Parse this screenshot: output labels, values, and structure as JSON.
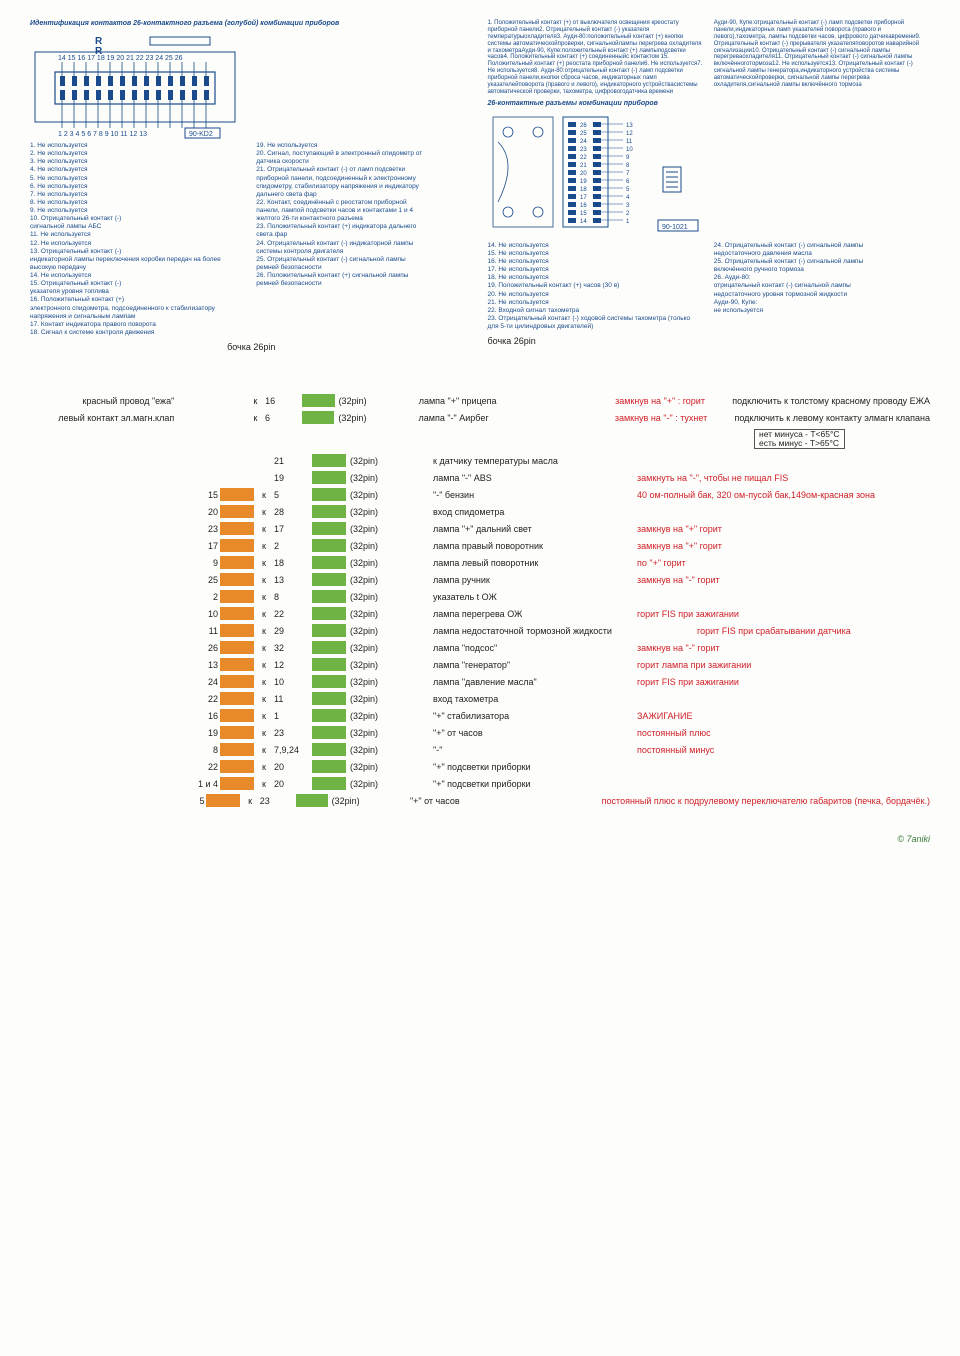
{
  "colors": {
    "blue_text": "#1a4b8c",
    "orange": "#e98a2a",
    "green": "#6eb344",
    "red": "#d02028",
    "black": "#222222",
    "bg": "#fdfdfb"
  },
  "top_left": {
    "title": "Идентификация контактов 26-контактного разъема (голубой) комбинации приборов",
    "top_numbers": "14 15 16 17 18 19 20 21 22 23 24 25 26",
    "bottom_numbers": "1  2  3  4  5  6  7  8  9 10 11 12 13",
    "code": "90-KD2",
    "list_left": [
      "1. Не используется",
      "2. Не используется",
      "3. Не используется",
      "4. Не используется",
      "5. Не используется",
      "6. Не используется",
      "7. Не используется",
      "8. Не используется",
      "9. Не используется",
      "10. Отрицательный контакт (-)",
      "сигнальной лампы АБС",
      "11. Не используется",
      "12. Не используется",
      "13. Отрицательный контакт (-)",
      "индикаторной лампы переключения коробки передач на более",
      "высокую передачу",
      "14. Не используется",
      "15. Отрицательный контакт (-)",
      "указателя уровня топлива",
      "16. Положительный контакт (+)",
      "электронного спидометра, подсоединенного к стабилизатору",
      "напряжения и сигнальным лампам",
      "17. Контакт индикатора правого поворота",
      "18. Сигнал к системе контроля движения"
    ],
    "list_right": [
      "19. Не используется",
      "20. Сигнал, поступающий в электронный спидометр от",
      "датчика скорости",
      "21. Отрицательный контакт (-) от ламп подсветки",
      "приборной панели, подсоединенный к электронному",
      "спидометру, стабилизатору напряжения и индикатору",
      "дальнего света фар",
      "22. Контакт, соединённый с реостатом приборной",
      "панели, лампой подсветки часов и контактами 1 и 4",
      "желтого 26-ти контактного разъема",
      "23. Положительный контакт (+) индикатора дальнего",
      "света фар",
      "24. Отрицательный контакт (-) индикаторной лампы",
      "системы контроля двигателя",
      "25. Отрицательный контакт (-) сигнальной лампы",
      "ремней безопасности",
      "26. Положительный контакт (+) сигнальной лампы",
      "ремней безопасности"
    ],
    "bottom": "бочка 26pin"
  },
  "top_right": {
    "tiny_top_left": [
      "1. Положительный контакт (+) от выключателя освещения к",
      "реостату приборной панели",
      "2. Отрицательный контакт (-) указателя температуры",
      "охладителя",
      "3. Ауди-80:",
      "положительный контакт (+) кнопки системы автоматической",
      "проверки, сигнальной",
      "лампы перегрева охладителя и тахометра",
      "Ауди-90, Купе:",
      "положительный контакт (+) лампы",
      "подсветки часов",
      "4. Положительный контакт (+) соединенный",
      "с контактом 1",
      "5. Положительный контакт (+) реостата приборной панели",
      "6. Не используется",
      "7. Не используется",
      "8. Ауди-80:",
      "отрицательный контакт (-) ламп подсветки приборной панели,",
      "кнопки сброса часов, индикаторных ламп указателей",
      "поворота (правого и левого), индикаторного устройства",
      "системы автоматической проверки, тахометра, цифрового",
      "датчика времени"
    ],
    "tiny_top_right": [
      "Ауди-90, Купе:",
      "отрицательный контакт (-) ламп подсветки приборной панели,",
      "индикаторных ламп указателей поворота (правого и левого),",
      "тахометра, лампы подсветки часов, цифрового датчика",
      "времени",
      "9. Отрицательный контакт (-) прерывателя указателя",
      "поворотов и",
      "аварийной сигнализации",
      "10. Отрицательный контакт (-) сигнальной лампы перегрева",
      "охладителя",
      "11. Отрицательный контакт (-) сигнальной лампы включённого",
      "тормоза",
      "12. Не используется",
      "13. Отрицательный контакт (-) сигнальной лампы генератора,",
      "индикаторного устройства системы автоматической",
      "проверки, сигнальной лампы перегрева охладителя,",
      "сигнальной лампы включённого тормоза"
    ],
    "subhead": "26-контактные разъемы комбинации приборов",
    "right_side_numbers_top": [
      "26",
      "25",
      "24",
      "23",
      "22",
      "21",
      "20",
      "19",
      "18",
      "17",
      "16",
      "15",
      "14"
    ],
    "right_side_numbers_right": [
      "13",
      "12",
      "11",
      "10",
      "9",
      "8",
      "7",
      "6",
      "5",
      "4",
      "3",
      "2",
      "1"
    ],
    "code": "90-1021",
    "list_bottom_left": [
      "14. Не используется",
      "15. Не используется",
      "16. Не используется",
      "17. Не используется",
      "18. Не используется",
      "19. Положительный контакт (+) часов (30 в)",
      "20. Не используется",
      "21. Не используется",
      "22. Входной сигнал тахометра",
      "23. Отрицательный контакт (-) ходовой системы тахометра (только",
      "для 5-ти цилиндровых двигателей)"
    ],
    "list_bottom_right": [
      "24. Отрицательный контакт (-) сигнальной лампы",
      "недостаточного давления масла",
      "25. Отрицательный контакт (-) сигнальной лампы",
      "включённого ручного тормоза",
      "26. Ауди-80:",
      "отрицательный контакт (-) сигнальной лампы",
      "недостаточного уровня тормозной жидкости",
      "Ауди-90, Купе:",
      "не используется"
    ],
    "bottom": "бочка 26pin"
  },
  "table": {
    "rows": [
      {
        "left": "красный провод \"ежа\"",
        "pin26": "",
        "lcolor": "",
        "k": "к",
        "pin32": "16",
        "rcolor": "green",
        "lbl": "(32pin)",
        "desc": "лампа \"+\" прицепа",
        "note": "замкнув на \"+\" : горит",
        "note2": "подключить к толстому красному проводу ЕЖА",
        "note2box": false
      },
      {
        "left": "левый контакт эл.магн.клап",
        "pin26": "",
        "lcolor": "",
        "k": "к",
        "pin32": "6",
        "rcolor": "green",
        "lbl": "(32pin)",
        "desc": "лампа \"-\" Аирбег",
        "note": "замкнув на \"-\" : тухнет",
        "note2": "подключить к левому контакту элмагн клапана",
        "note2box": true,
        "box_l1": "нет минуса - T<65°C",
        "box_l2": "есть минус - T>65°C"
      },
      {
        "left": "",
        "pin26": "",
        "lcolor": "",
        "k": "",
        "pin32": "21",
        "rcolor": "green",
        "lbl": "(32pin)",
        "desc": "к датчику температуры масла",
        "note": "",
        "note2": ""
      },
      {
        "left": "",
        "pin26": "",
        "lcolor": "",
        "k": "",
        "pin32": "19",
        "rcolor": "green",
        "lbl": "(32pin)",
        "desc": "лампа \"-\" ABS",
        "note": "замкнуть на \"-\", чтобы не пищал FIS",
        "note2": ""
      },
      {
        "left": "",
        "pin26": "15",
        "lcolor": "orange",
        "k": "к",
        "pin32": "5",
        "rcolor": "green",
        "lbl": "(32pin)",
        "desc": "\"-\" бензин",
        "note": "40 ом-полный бак, 320 ом-пусой бак,149ом-красная зона",
        "note2": ""
      },
      {
        "left": "",
        "pin26": "20",
        "lcolor": "orange",
        "k": "к",
        "pin32": "28",
        "rcolor": "green",
        "lbl": "(32pin)",
        "desc": "вход спидометра",
        "note": "",
        "note2": ""
      },
      {
        "left": "",
        "pin26": "23",
        "lcolor": "orange",
        "k": "к",
        "pin32": "17",
        "rcolor": "green",
        "lbl": "(32pin)",
        "desc": "лампа \"+\" дальний свет",
        "note": "замкнув на \"+\" горит",
        "note2": ""
      },
      {
        "left": "",
        "pin26": "17",
        "lcolor": "orange",
        "k": "к",
        "pin32": "2",
        "rcolor": "green",
        "lbl": "(32pin)",
        "desc": "лампа правый поворотник",
        "note": "замкнув на \"+\" горит",
        "note2": ""
      },
      {
        "left": "",
        "pin26": "9",
        "lcolor": "orange",
        "k": "к",
        "pin32": "18",
        "rcolor": "green",
        "lbl": "(32pin)",
        "desc": "лампа левый поворотник",
        "note": "по \"+\"  горит",
        "note2": ""
      },
      {
        "left": "",
        "pin26": "25",
        "lcolor": "orange",
        "k": "к",
        "pin32": "13",
        "rcolor": "green",
        "lbl": "(32pin)",
        "desc": "лампа ручник",
        "note": "замкнув на \"-\" горит",
        "note2": ""
      },
      {
        "left": "",
        "pin26": "2",
        "lcolor": "orange",
        "k": "к",
        "pin32": "8",
        "rcolor": "green",
        "lbl": "(32pin)",
        "desc": "указатель t ОЖ",
        "note": "",
        "note2": ""
      },
      {
        "left": "",
        "pin26": "10",
        "lcolor": "orange",
        "k": "к",
        "pin32": "22",
        "rcolor": "green",
        "lbl": "(32pin)",
        "desc": "лампа перегрева ОЖ",
        "note": "горит FIS при зажигании",
        "note2": ""
      },
      {
        "left": "",
        "pin26": "11",
        "lcolor": "orange",
        "k": "к",
        "pin32": "29",
        "rcolor": "green",
        "lbl": "(32pin)",
        "desc": "лампа недостаточной тормозной жидкости",
        "note": "горит FIS при срабатывании датчика",
        "note2": "",
        "wide_desc": true
      },
      {
        "left": "",
        "pin26": "26",
        "lcolor": "orange",
        "k": "к",
        "pin32": "32",
        "rcolor": "green",
        "lbl": "(32pin)",
        "desc": "лампа \"подсос\"",
        "note": "замкнув на \"-\" горит",
        "note2": ""
      },
      {
        "left": "",
        "pin26": "13",
        "lcolor": "orange",
        "k": "к",
        "pin32": "12",
        "rcolor": "green",
        "lbl": "(32pin)",
        "desc": "лампа \"генератор\"",
        "note": "горит лампа при зажигании",
        "note2": ""
      },
      {
        "left": "",
        "pin26": "24",
        "lcolor": "orange",
        "k": "к",
        "pin32": "10",
        "rcolor": "green",
        "lbl": "(32pin)",
        "desc": "лампа \"давление масла\"",
        "note": "горит FIS при зажигании",
        "note2": ""
      },
      {
        "left": "",
        "pin26": "22",
        "lcolor": "orange",
        "k": "к",
        "pin32": "11",
        "rcolor": "green",
        "lbl": "(32pin)",
        "desc": "вход тахометра",
        "note": "",
        "note2": ""
      },
      {
        "left": "",
        "pin26": "16",
        "lcolor": "orange",
        "k": "к",
        "pin32": "1",
        "rcolor": "green",
        "lbl": "(32pin)",
        "desc": "\"+\" стабилизатора",
        "note": "ЗАЖИГАНИЕ",
        "note2": ""
      },
      {
        "left": "",
        "pin26": "19",
        "lcolor": "orange",
        "k": "к",
        "pin32": "23",
        "rcolor": "green",
        "lbl": "(32pin)",
        "desc": "\"+\" от часов",
        "note": "постоянный плюс",
        "note2": ""
      },
      {
        "left": "",
        "pin26": "8",
        "lcolor": "orange",
        "k": "к",
        "pin32": "7,9,24",
        "rcolor": "green",
        "lbl": "(32pin)",
        "desc": "\"-\"",
        "note": "постоянный минус",
        "note2": ""
      },
      {
        "left": "",
        "pin26": "22",
        "lcolor": "orange",
        "k": "к",
        "pin32": "20",
        "rcolor": "green",
        "lbl": "(32pin)",
        "desc": "\"+\" подсветки приборки",
        "note": "",
        "note2": ""
      },
      {
        "left": "",
        "pin26": "1 и 4",
        "lcolor": "orange",
        "k": "к",
        "pin32": "20",
        "rcolor": "green",
        "lbl": "(32pin)",
        "desc": "\"+\" подсветки приборки",
        "note": "",
        "note2": ""
      },
      {
        "left": "",
        "pin26": "5",
        "lcolor": "orange",
        "k": "к",
        "pin32": "23",
        "rcolor": "green",
        "lbl": "(32pin)",
        "desc": "\"+\" от часов",
        "note": "постоянный плюс к подрулевому переключателю габаритов (печка, бордачёк.)",
        "note2": ""
      }
    ]
  },
  "credit": "© 7aniki"
}
